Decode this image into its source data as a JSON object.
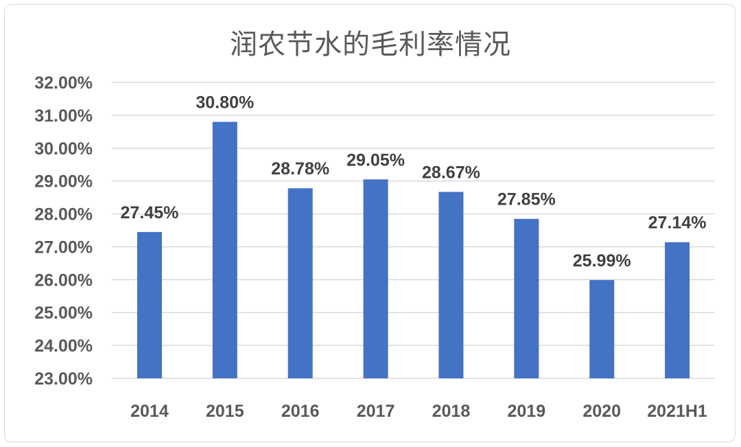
{
  "chart_data": {
    "type": "bar",
    "title": "润农节水的毛利率情况",
    "xlabel": "",
    "ylabel": "",
    "categories": [
      "2014",
      "2015",
      "2016",
      "2017",
      "2018",
      "2019",
      "2020",
      "2021H1"
    ],
    "values": [
      27.45,
      30.8,
      28.78,
      29.05,
      28.67,
      27.85,
      25.99,
      27.14
    ],
    "data_labels": [
      "27.45%",
      "30.80%",
      "28.78%",
      "29.05%",
      "28.67%",
      "27.85%",
      "25.99%",
      "27.14%"
    ],
    "ylim": [
      23,
      32
    ],
    "yticks": [
      23,
      24,
      25,
      26,
      27,
      28,
      29,
      30,
      31,
      32
    ],
    "ytick_labels": [
      "23.00%",
      "24.00%",
      "25.00%",
      "26.00%",
      "27.00%",
      "28.00%",
      "29.00%",
      "30.00%",
      "31.00%",
      "32.00%"
    ],
    "grid": true,
    "legend": "none",
    "colors": {
      "bar": "#4472C4",
      "grid": "#d9d9d9",
      "axis_text": "#595959",
      "label_text": "#404040"
    }
  }
}
